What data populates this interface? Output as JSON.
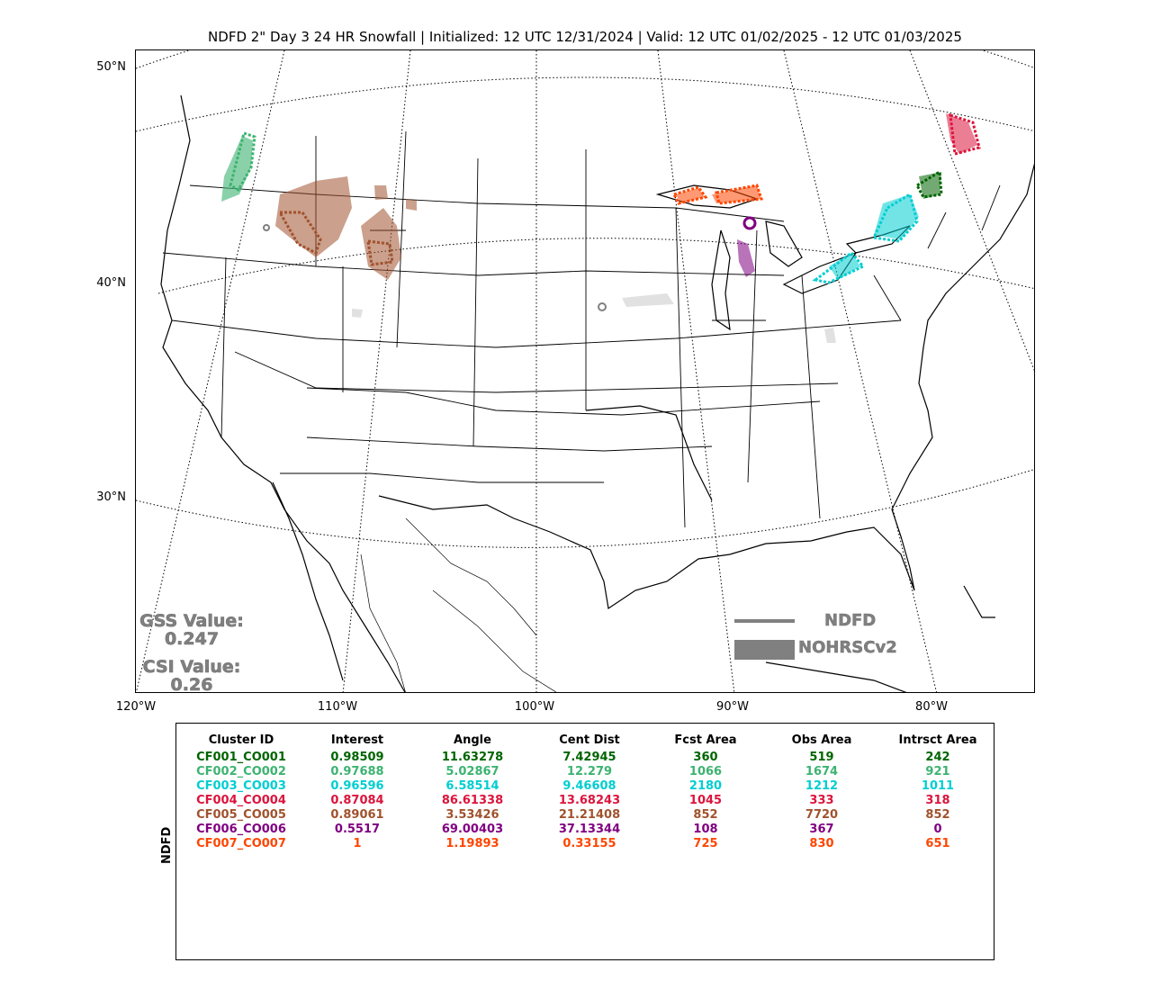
{
  "title": "NDFD 2\" Day 3 24 HR Snowfall | Initialized: 12 UTC 12/31/2024 | Valid: 12 UTC 01/02/2025 - 12 UTC 01/03/2025",
  "map": {
    "lat_labels": [
      "50°N",
      "40°N",
      "30°N"
    ],
    "lon_labels": [
      "120°W",
      "110°W",
      "100°W",
      "90°W",
      "80°W"
    ],
    "scores": {
      "gss_label": "GSS Value:",
      "gss_value": "0.247",
      "csi_label": "CSI Value:",
      "csi_value": "0.26"
    },
    "legend": {
      "line_label": "NDFD",
      "fill_label": "NOHRSCv2",
      "color": "#808080"
    }
  },
  "table": {
    "y_label": "NDFD",
    "headers": [
      "Cluster ID",
      "Interest",
      "Angle",
      "Cent Dist",
      "Fcst Area",
      "Obs Area",
      "Intrsct Area"
    ],
    "rows": [
      {
        "color": "#006400",
        "cells": [
          "CF001_CO001",
          "0.98509",
          "11.63278",
          "7.42945",
          "360",
          "519",
          "242"
        ]
      },
      {
        "color": "#3CB371",
        "cells": [
          "CF002_CO002",
          "0.97688",
          "5.02867",
          "12.279",
          "1066",
          "1674",
          "921"
        ]
      },
      {
        "color": "#00CED1",
        "cells": [
          "CF003_CO003",
          "0.96596",
          "6.58514",
          "9.46608",
          "2180",
          "1212",
          "1011"
        ]
      },
      {
        "color": "#DC143C",
        "cells": [
          "CF004_CO004",
          "0.87084",
          "86.61338",
          "13.68243",
          "1045",
          "333",
          "318"
        ]
      },
      {
        "color": "#A0522D",
        "cells": [
          "CF005_CO005",
          "0.89061",
          "3.53426",
          "21.21408",
          "852",
          "7720",
          "852"
        ]
      },
      {
        "color": "#800080",
        "cells": [
          "CF006_CO006",
          "0.5517",
          "69.00403",
          "37.13344",
          "108",
          "367",
          "0"
        ]
      },
      {
        "color": "#FF4500",
        "cells": [
          "CF007_CO007",
          "1",
          "1.19893",
          "0.33155",
          "725",
          "830",
          "651"
        ]
      }
    ]
  }
}
